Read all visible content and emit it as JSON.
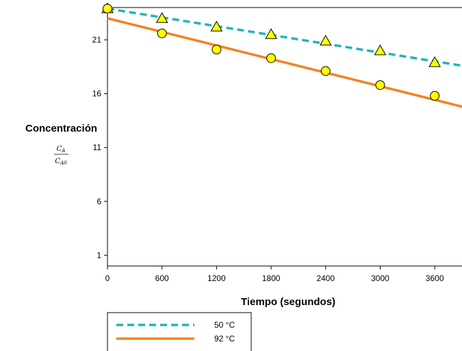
{
  "chart_data": {
    "type": "scatter",
    "title": "",
    "xlabel": "Tiempo (segundos)",
    "ylabel": "Concentración",
    "ylabel_fraction": {
      "numerator": "C",
      "numerator_sub": "A",
      "denominator": "C",
      "denominator_sub": "A0"
    },
    "xlim": [
      0,
      3900
    ],
    "ylim": [
      0,
      24
    ],
    "x_ticks": [
      0,
      600,
      1200,
      1800,
      2400,
      3000,
      3600
    ],
    "y_ticks": [
      1,
      6,
      11,
      16,
      21
    ],
    "legend_position": "bottom-left",
    "series": [
      {
        "name": "50 °C",
        "marker": "triangle",
        "marker_fill": "#ffff00",
        "line_style": "dashed",
        "line_color": "#1fb5b5",
        "fit": {
          "x": [
            0,
            3900
          ],
          "y": [
            23.9,
            18.6
          ]
        },
        "points": [
          {
            "x": 0,
            "y": 23.9
          },
          {
            "x": 600,
            "y": 23.0
          },
          {
            "x": 1200,
            "y": 22.2
          },
          {
            "x": 1800,
            "y": 21.5
          },
          {
            "x": 2400,
            "y": 20.9
          },
          {
            "x": 3000,
            "y": 20.0
          },
          {
            "x": 3600,
            "y": 18.9
          }
        ]
      },
      {
        "name": "92 °C",
        "marker": "circle",
        "marker_fill": "#ffff00",
        "line_style": "solid",
        "line_color": "#f7801e",
        "fit": {
          "x": [
            0,
            3900
          ],
          "y": [
            23.0,
            14.8
          ]
        },
        "points": [
          {
            "x": 0,
            "y": 23.9
          },
          {
            "x": 600,
            "y": 21.6
          },
          {
            "x": 1200,
            "y": 20.1
          },
          {
            "x": 1800,
            "y": 19.3
          },
          {
            "x": 2400,
            "y": 18.1
          },
          {
            "x": 3000,
            "y": 16.8
          },
          {
            "x": 3600,
            "y": 15.8
          }
        ]
      }
    ]
  }
}
